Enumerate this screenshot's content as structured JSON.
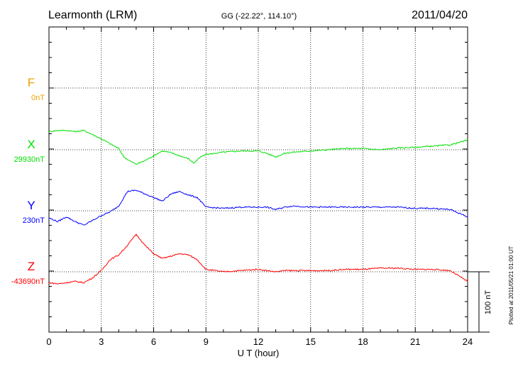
{
  "header": {
    "station": "Learmonth (LRM)",
    "coords": "GG (-22.22°, 114.10°)",
    "date": "2011/04/20"
  },
  "footer": {
    "plotted": "Plotted at 2011/05/21 01:00 UT"
  },
  "chart_data": {
    "type": "line",
    "title": "Learmonth (LRM)",
    "xlabel": "U T (hour)",
    "ylabel": "",
    "xlim": [
      0,
      24
    ],
    "xticks": [
      "0",
      "3",
      "6",
      "9",
      "12",
      "15",
      "18",
      "21",
      "24"
    ],
    "grid": true,
    "scale_bar": {
      "label": "100 nT",
      "value_nT": 100
    },
    "series": [
      {
        "name": "F",
        "baseline_label": "0nT",
        "baseline": 0,
        "color": "#f0a000",
        "x": [],
        "values": []
      },
      {
        "name": "X",
        "baseline_label": "29930nT",
        "baseline": 29930,
        "color": "#00e000",
        "x": [
          0,
          0.5,
          1,
          1.5,
          2,
          2.5,
          3,
          3.5,
          4,
          4.3,
          4.6,
          5,
          5.5,
          6,
          6.5,
          7,
          7.5,
          8,
          8.3,
          8.7,
          9,
          10,
          11,
          12,
          12.5,
          13,
          13.5,
          14,
          15,
          16,
          17,
          18,
          19,
          20,
          21,
          22,
          23,
          24
        ],
        "values": [
          29960,
          29962,
          29962,
          29960,
          29962,
          29955,
          29948,
          29940,
          29932,
          29918,
          29912,
          29906,
          29912,
          29920,
          29928,
          29925,
          29920,
          29915,
          29908,
          29918,
          29922,
          29926,
          29928,
          29928,
          29924,
          29918,
          29924,
          29926,
          29928,
          29930,
          29932,
          29932,
          29930,
          29933,
          29934,
          29936,
          29938,
          29946
        ]
      },
      {
        "name": "Y",
        "baseline_label": "230nT",
        "baseline": 230,
        "color": "#0000ff",
        "x": [
          0,
          0.5,
          1,
          1.5,
          2,
          2.5,
          3,
          3.5,
          4,
          4.5,
          5,
          5.5,
          6,
          6.5,
          7,
          7.5,
          8,
          8.5,
          9,
          10,
          11,
          12,
          12.5,
          13,
          13.5,
          14,
          15,
          16,
          17,
          18,
          19,
          20,
          21,
          22,
          23,
          24
        ],
        "values": [
          218,
          212,
          220,
          212,
          206,
          214,
          222,
          228,
          238,
          262,
          264,
          258,
          252,
          246,
          258,
          262,
          256,
          252,
          236,
          234,
          236,
          236,
          236,
          232,
          236,
          238,
          236,
          236,
          236,
          236,
          236,
          236,
          234,
          234,
          232,
          220
        ]
      },
      {
        "name": "Z",
        "baseline_label": "-43690nT",
        "baseline": -43690,
        "color": "#ff0000",
        "x": [
          0,
          0.5,
          1,
          1.5,
          2,
          2.5,
          3,
          3.5,
          4,
          4.5,
          5,
          5.5,
          6,
          6.5,
          7,
          7.5,
          8,
          8.5,
          9,
          10,
          11,
          12,
          12.5,
          13,
          13.5,
          14,
          15,
          16,
          17,
          18,
          19,
          20,
          21,
          22,
          23,
          24
        ],
        "values": [
          -43708,
          -43710,
          -43708,
          -43706,
          -43708,
          -43700,
          -43688,
          -43670,
          -43662,
          -43646,
          -43628,
          -43646,
          -43660,
          -43668,
          -43664,
          -43660,
          -43662,
          -43670,
          -43686,
          -43690,
          -43688,
          -43686,
          -43688,
          -43690,
          -43688,
          -43688,
          -43688,
          -43688,
          -43686,
          -43686,
          -43684,
          -43684,
          -43686,
          -43686,
          -43688,
          -43706
        ]
      }
    ]
  }
}
